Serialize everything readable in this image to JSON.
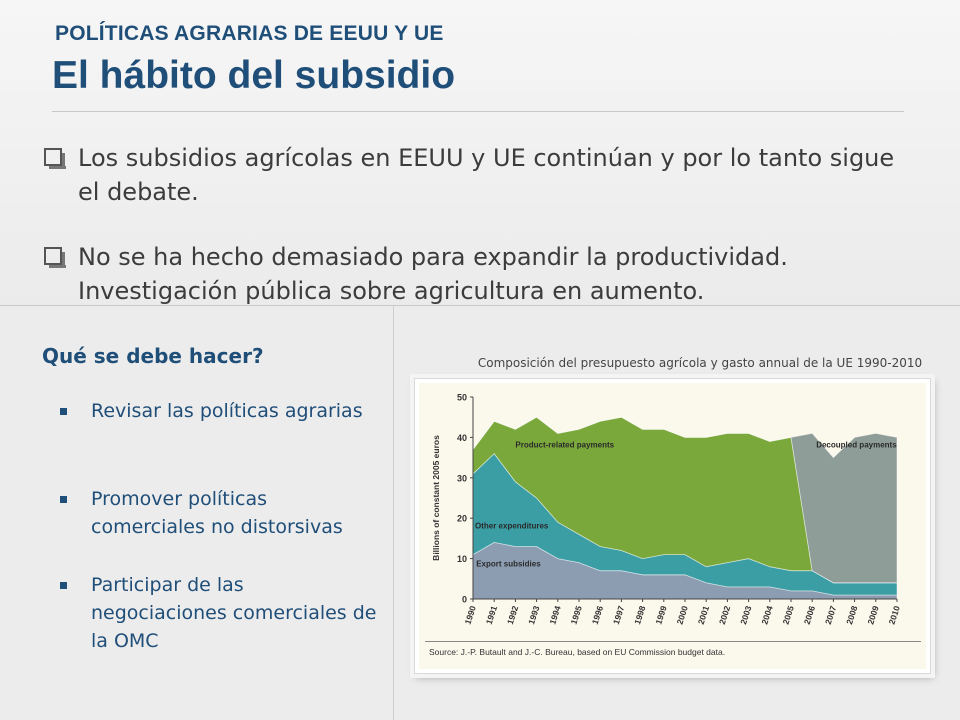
{
  "header": {
    "kicker": "POLÍTICAS AGRARIAS DE EEUU Y UE",
    "title": "El hábito del subsidio"
  },
  "bullets": [
    {
      "text": "Los subsidios agrícolas en EEUU y UE continúan y por lo tanto sigue el debate."
    },
    {
      "text": "No se ha hecho demasiado para expandir la productividad. Investigación pública sobre agricultura en aumento."
    }
  ],
  "what_to_do": {
    "title": "Qué se debe hacer?",
    "items": [
      "Revisar las políticas agrarias",
      "Promover políticas comerciales no distorsivas",
      "Participar de las negociaciones comerciales de la OMC"
    ]
  },
  "chart_caption": "Composición del presupuesto agrícola y gasto annual de la UE 1990-2010",
  "chart_data": {
    "type": "area",
    "stacked": true,
    "x": [
      1990,
      1991,
      1992,
      1993,
      1994,
      1995,
      1996,
      1997,
      1998,
      1999,
      2000,
      2001,
      2002,
      2003,
      2004,
      2005,
      2006,
      2007,
      2008,
      2009,
      2010
    ],
    "ylabel": "Billions of constant 2005 euros",
    "ylim": [
      0,
      50
    ],
    "yticks": [
      0,
      10,
      20,
      30,
      40,
      50
    ],
    "grid": false,
    "series": [
      {
        "name": "Export subsidies",
        "color": "#8c9db2",
        "values": [
          11,
          14,
          13,
          13,
          10,
          9,
          7,
          7,
          6,
          6,
          6,
          4,
          3,
          3,
          3,
          2,
          2,
          1,
          1,
          1,
          1
        ]
      },
      {
        "name": "Other expenditures",
        "color": "#3a9ea4",
        "values": [
          20,
          22,
          16,
          12,
          9,
          7,
          6,
          5,
          4,
          5,
          5,
          4,
          6,
          7,
          5,
          5,
          5,
          3,
          3,
          3,
          3
        ]
      },
      {
        "name": "Product-related payments",
        "color": "#7ba83b",
        "values": [
          6,
          8,
          13,
          20,
          22,
          26,
          31,
          33,
          32,
          31,
          29,
          32,
          32,
          31,
          31,
          33,
          0,
          0,
          0,
          0,
          0
        ]
      },
      {
        "name": "Decoupled payments",
        "color": "#8e9d98",
        "values": [
          0,
          0,
          0,
          0,
          0,
          0,
          0,
          0,
          0,
          0,
          0,
          0,
          0,
          0,
          0,
          0,
          34,
          31,
          36,
          37,
          36
        ]
      }
    ],
    "source": "Source: J.-P. Butault and J.-C. Bureau, based on EU Commission budget data."
  }
}
